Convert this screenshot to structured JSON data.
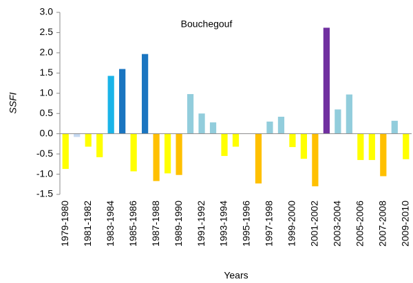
{
  "chart_data": {
    "type": "bar",
    "annotation": "Bouchegouf",
    "y_label": "SSFI",
    "x_label": "Years",
    "categories": [
      "1979-1980",
      null,
      "1981-1982",
      null,
      "1983-1984",
      null,
      "1985-1986",
      null,
      "1987-1988",
      null,
      "1989-1990",
      null,
      "1991-1992",
      null,
      "1993-1994",
      null,
      "1995-1996",
      null,
      "1997-1998",
      null,
      "1999-2000",
      null,
      "2001-2002",
      null,
      "2003-2004",
      null,
      "2005-2006",
      null,
      "2007-2008",
      null,
      "2009-2010"
    ],
    "values": [
      -0.87,
      -0.08,
      -0.32,
      -0.58,
      1.43,
      1.6,
      -0.93,
      1.97,
      -1.17,
      -0.98,
      -1.02,
      0.98,
      0.5,
      0.28,
      -0.55,
      -0.32,
      0,
      -1.23,
      0.3,
      0.42,
      -0.33,
      -0.62,
      -1.3,
      2.62,
      0.6,
      0.97,
      -0.65,
      -0.65,
      -1.05,
      0.32,
      -0.63
    ],
    "colors": [
      "#ffff00",
      "#c5d9f1",
      "#ffff00",
      "#ffff00",
      "#1ab4e8",
      "#1a75c0",
      "#ffff00",
      "#1a75c0",
      "#ffc000",
      "#ffff00",
      "#ffc000",
      "#92cddc",
      "#92cddc",
      "#92cddc",
      "#ffff00",
      "#ffff00",
      "#ffff00",
      "#ffc000",
      "#92cddc",
      "#92cddc",
      "#ffff00",
      "#ffff00",
      "#ffc000",
      "#7030a0",
      "#92cddc",
      "#92cddc",
      "#ffff00",
      "#ffff00",
      "#ffc000",
      "#92cddc",
      "#ffff00"
    ],
    "ylim": [
      -1.5,
      3
    ],
    "yticks": [
      {
        "value": -1.5,
        "label": "-1.5"
      },
      {
        "value": -1,
        "label": "-1.0"
      },
      {
        "value": -0.5,
        "label": "-0.5"
      },
      {
        "value": 0,
        "label": "0.0"
      },
      {
        "value": 0.5,
        "label": "0.5"
      },
      {
        "value": 1,
        "label": "1.0"
      },
      {
        "value": 1.5,
        "label": "1.5"
      },
      {
        "value": 2,
        "label": "2.0"
      },
      {
        "value": 2.5,
        "label": "2.5"
      },
      {
        "value": 3,
        "label": "3.0"
      }
    ]
  }
}
